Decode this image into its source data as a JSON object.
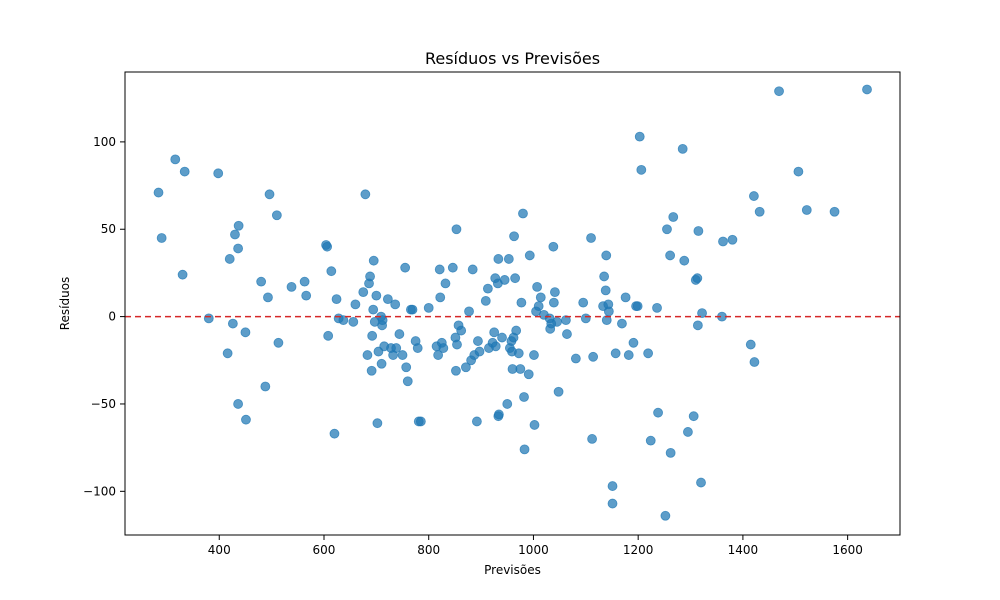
{
  "chart_data": {
    "type": "scatter",
    "title": "Resíduos vs Previsões",
    "xlabel": "Previsões",
    "ylabel": "Resíduos",
    "xlim": [
      220,
      1700
    ],
    "ylim": [
      -125,
      140
    ],
    "xticks": [
      "400",
      "600",
      "800",
      "1000",
      "1200",
      "1400",
      "1600"
    ],
    "yticks": [
      "−100",
      "−50",
      "0",
      "50",
      "100"
    ],
    "xtick_values": [
      400,
      600,
      800,
      1000,
      1200,
      1400,
      1600
    ],
    "ytick_values": [
      -100,
      -50,
      0,
      50,
      100
    ],
    "grid": false,
    "point_color": "#1f77b4",
    "reference_line": {
      "y": 0,
      "color": "#d62728",
      "style": "dashed"
    },
    "points": [
      [
        284,
        71
      ],
      [
        290,
        45
      ],
      [
        316,
        90
      ],
      [
        330,
        24
      ],
      [
        334,
        83
      ],
      [
        380,
        -1
      ],
      [
        398,
        82
      ],
      [
        416,
        -21
      ],
      [
        420,
        33
      ],
      [
        426,
        -4
      ],
      [
        430,
        47
      ],
      [
        436,
        39
      ],
      [
        437,
        52
      ],
      [
        436,
        -50
      ],
      [
        450,
        -9
      ],
      [
        451,
        -59
      ],
      [
        480,
        20
      ],
      [
        488,
        -40
      ],
      [
        493,
        11
      ],
      [
        496,
        70
      ],
      [
        510,
        58
      ],
      [
        513,
        -15
      ],
      [
        538,
        17
      ],
      [
        563,
        20
      ],
      [
        566,
        12
      ],
      [
        604,
        41
      ],
      [
        606,
        40
      ],
      [
        608,
        -11
      ],
      [
        614,
        26
      ],
      [
        620,
        -67
      ],
      [
        624,
        10
      ],
      [
        628,
        -1
      ],
      [
        637,
        -2
      ],
      [
        656,
        -3
      ],
      [
        660,
        7
      ],
      [
        675,
        14
      ],
      [
        679,
        70
      ],
      [
        683,
        -22
      ],
      [
        686,
        19
      ],
      [
        688,
        23
      ],
      [
        691,
        -31
      ],
      [
        692,
        -11
      ],
      [
        694,
        4
      ],
      [
        695,
        32
      ],
      [
        697,
        -3
      ],
      [
        700,
        12
      ],
      [
        702,
        -61
      ],
      [
        704,
        -20
      ],
      [
        709,
        0
      ],
      [
        710,
        -27
      ],
      [
        711,
        -5
      ],
      [
        712,
        -2
      ],
      [
        715,
        -17
      ],
      [
        722,
        10
      ],
      [
        728,
        -18
      ],
      [
        732,
        -22
      ],
      [
        736,
        7
      ],
      [
        738,
        -18
      ],
      [
        744,
        -10
      ],
      [
        750,
        -22
      ],
      [
        755,
        28
      ],
      [
        757,
        -29
      ],
      [
        760,
        -37
      ],
      [
        766,
        4
      ],
      [
        769,
        4
      ],
      [
        775,
        -14
      ],
      [
        779,
        -18
      ],
      [
        781,
        -60
      ],
      [
        785,
        -60
      ],
      [
        800,
        5
      ],
      [
        815,
        -17
      ],
      [
        818,
        -22
      ],
      [
        821,
        27
      ],
      [
        822,
        11
      ],
      [
        825,
        -15
      ],
      [
        828,
        -18
      ],
      [
        832,
        19
      ],
      [
        846,
        28
      ],
      [
        851,
        -12
      ],
      [
        852,
        -31
      ],
      [
        853,
        50
      ],
      [
        854,
        -16
      ],
      [
        857,
        -5
      ],
      [
        862,
        -8
      ],
      [
        871,
        -29
      ],
      [
        877,
        3
      ],
      [
        881,
        -25
      ],
      [
        884,
        27
      ],
      [
        887,
        -22
      ],
      [
        892,
        -60
      ],
      [
        894,
        -14
      ],
      [
        897,
        -20
      ],
      [
        909,
        9
      ],
      [
        913,
        16
      ],
      [
        915,
        -18
      ],
      [
        922,
        -15
      ],
      [
        925,
        -9
      ],
      [
        927,
        22
      ],
      [
        928,
        -17
      ],
      [
        932,
        19
      ],
      [
        933,
        33
      ],
      [
        933,
        -57
      ],
      [
        934,
        -56
      ],
      [
        940,
        -12
      ],
      [
        945,
        21
      ],
      [
        950,
        -50
      ],
      [
        953,
        33
      ],
      [
        955,
        -18
      ],
      [
        958,
        -14
      ],
      [
        959,
        -20
      ],
      [
        960,
        -30
      ],
      [
        962,
        -12
      ],
      [
        963,
        46
      ],
      [
        965,
        22
      ],
      [
        967,
        -8
      ],
      [
        972,
        -21
      ],
      [
        975,
        -30
      ],
      [
        977,
        8
      ],
      [
        980,
        59
      ],
      [
        982,
        -46
      ],
      [
        983,
        -76
      ],
      [
        991,
        -33
      ],
      [
        993,
        35
      ],
      [
        1001,
        -22
      ],
      [
        1002,
        -62
      ],
      [
        1005,
        3
      ],
      [
        1007,
        17
      ],
      [
        1010,
        6
      ],
      [
        1014,
        11
      ],
      [
        1020,
        1
      ],
      [
        1031,
        -1
      ],
      [
        1032,
        -7
      ],
      [
        1034,
        -4
      ],
      [
        1038,
        40
      ],
      [
        1039,
        8
      ],
      [
        1041,
        14
      ],
      [
        1045,
        -3
      ],
      [
        1048,
        -43
      ],
      [
        1062,
        -2
      ],
      [
        1064,
        -10
      ],
      [
        1081,
        -24
      ],
      [
        1095,
        8
      ],
      [
        1100,
        -1
      ],
      [
        1110,
        45
      ],
      [
        1114,
        -23
      ],
      [
        1112,
        -70
      ],
      [
        1133,
        6
      ],
      [
        1135,
        23
      ],
      [
        1138,
        15
      ],
      [
        1139,
        35
      ],
      [
        1140,
        -2
      ],
      [
        1143,
        7
      ],
      [
        1144,
        3
      ],
      [
        1151,
        -97
      ],
      [
        1151,
        -107
      ],
      [
        1157,
        -21
      ],
      [
        1169,
        -4
      ],
      [
        1176,
        11
      ],
      [
        1182,
        -22
      ],
      [
        1191,
        -15
      ],
      [
        1196,
        6
      ],
      [
        1199,
        6
      ],
      [
        1203,
        103
      ],
      [
        1206,
        84
      ],
      [
        1219,
        -21
      ],
      [
        1224,
        -71
      ],
      [
        1236,
        5
      ],
      [
        1238,
        -55
      ],
      [
        1252,
        -114
      ],
      [
        1255,
        50
      ],
      [
        1261,
        35
      ],
      [
        1262,
        -78
      ],
      [
        1267,
        57
      ],
      [
        1285,
        96
      ],
      [
        1288,
        32
      ],
      [
        1295,
        -66
      ],
      [
        1306,
        -57
      ],
      [
        1310,
        21
      ],
      [
        1313,
        22
      ],
      [
        1314,
        -5
      ],
      [
        1315,
        49
      ],
      [
        1320,
        -95
      ],
      [
        1322,
        2
      ],
      [
        1360,
        0
      ],
      [
        1362,
        43
      ],
      [
        1380,
        44
      ],
      [
        1415,
        -16
      ],
      [
        1421,
        69
      ],
      [
        1422,
        -26
      ],
      [
        1432,
        60
      ],
      [
        1469,
        129
      ],
      [
        1506,
        83
      ],
      [
        1522,
        61
      ],
      [
        1575,
        60
      ],
      [
        1637,
        130
      ]
    ]
  }
}
